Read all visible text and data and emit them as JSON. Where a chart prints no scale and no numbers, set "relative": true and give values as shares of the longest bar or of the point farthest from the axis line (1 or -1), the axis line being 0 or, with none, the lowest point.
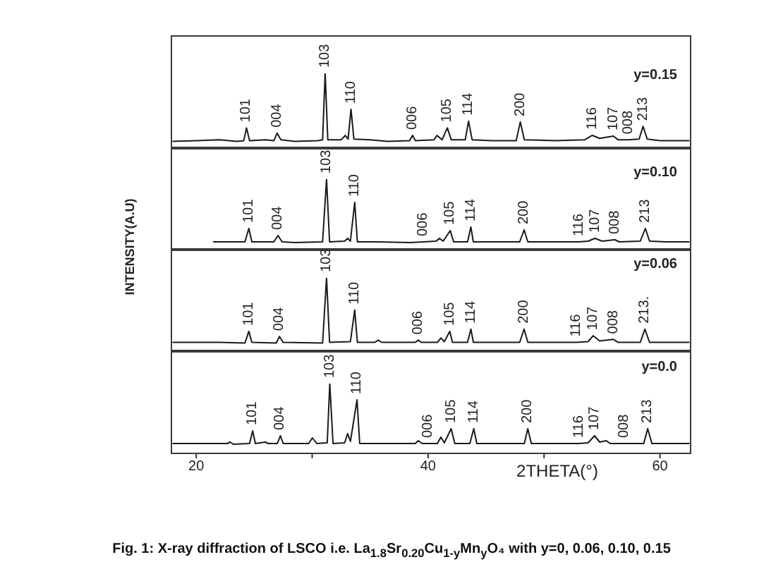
{
  "chart_data": [
    {
      "type": "line",
      "relative": true,
      "xlim": [
        17.8,
        62.7
      ],
      "tick_labels": false,
      "x": [
        18,
        20,
        22,
        23.5,
        24.1,
        24.34,
        24.6,
        26,
        26.7,
        26.98,
        27.3,
        28.5,
        30.5,
        30.9,
        31.12,
        31.35,
        32.5,
        32.86,
        33.1,
        33.35,
        33.6,
        35,
        36.5,
        38.4,
        38.66,
        38.9,
        40.5,
        40.77,
        41.2,
        41.66,
        42,
        43.2,
        43.49,
        43.8,
        45.5,
        47.6,
        47.95,
        48.3,
        51,
        53.5,
        54.16,
        54.8,
        55.98,
        56.4,
        57.3,
        58.2,
        58.54,
        58.9,
        60,
        62.5
      ],
      "series": [
        {
          "name": "y=0.15",
          "color": "#1a1a1a",
          "values": [
            0.09,
            0.1,
            0.11,
            0.09,
            0.1,
            0.27,
            0.1,
            0.11,
            0.1,
            0.2,
            0.11,
            0.09,
            0.1,
            0.11,
            1,
            0.11,
            0.11,
            0.17,
            0.12,
            0.52,
            0.12,
            0.11,
            0.09,
            0.1,
            0.17,
            0.1,
            0.11,
            0.17,
            0.11,
            0.27,
            0.11,
            0.11,
            0.36,
            0.11,
            0.1,
            0.1,
            0.35,
            0.11,
            0.1,
            0.11,
            0.17,
            0.13,
            0.16,
            0.11,
            0.11,
            0.12,
            0.29,
            0.12,
            0.1,
            0.1
          ]
        }
      ],
      "annotations": [
        {
          "text": "101",
          "x": 24.34,
          "y": 0.27
        },
        {
          "text": "004",
          "x": 26.98,
          "y": 0.2
        },
        {
          "text": "103",
          "x": 31.12,
          "y": 1
        },
        {
          "text": "110",
          "x": 33.35,
          "y": 0.52
        },
        {
          "text": "006",
          "x": 38.66,
          "y": 0.17
        },
        {
          "text": "105",
          "x": 41.66,
          "y": 0.27
        },
        {
          "text": "114",
          "x": 43.49,
          "y": 0.36
        },
        {
          "text": "200",
          "x": 47.95,
          "y": 0.35
        },
        {
          "text": "116",
          "x": 54.16,
          "y": 0.17
        },
        {
          "text": "107",
          "x": 55.98,
          "y": 0.16
        },
        {
          "text": "008",
          "x": 57.3,
          "y": 0.11
        },
        {
          "text": "213",
          "x": 58.54,
          "y": 0.29
        }
      ]
    },
    {
      "type": "line",
      "relative": true,
      "xlim": [
        17.8,
        62.7
      ],
      "tick_labels": false,
      "ylabel": "INTENSITY(A.U)",
      "x": [
        21.5,
        24.2,
        24.54,
        24.8,
        26.7,
        27.06,
        27.4,
        28.5,
        30.9,
        31.24,
        31.5,
        32.8,
        33.06,
        33.3,
        33.67,
        33.9,
        35.5,
        38.5,
        39.6,
        40.7,
        40.97,
        41.3,
        41.91,
        42.2,
        43.4,
        43.69,
        43.9,
        46,
        47.9,
        48.28,
        48.6,
        51,
        53,
        53.8,
        54.4,
        55,
        56.1,
        56.5,
        58.3,
        58.74,
        59.1,
        60.5,
        62.5
      ],
      "series": [
        {
          "name": "y=0.10",
          "color": "#1a1a1a",
          "values": [
            0.11,
            0.11,
            0.3,
            0.11,
            0.11,
            0.2,
            0.11,
            0.1,
            0.11,
            1,
            0.11,
            0.12,
            0.16,
            0.12,
            0.67,
            0.11,
            0.11,
            0.1,
            0.11,
            0.12,
            0.16,
            0.12,
            0.27,
            0.11,
            0.11,
            0.32,
            0.11,
            0.11,
            0.11,
            0.28,
            0.11,
            0.11,
            0.11,
            0.12,
            0.16,
            0.12,
            0.14,
            0.11,
            0.12,
            0.3,
            0.12,
            0.11,
            0.11
          ]
        }
      ],
      "annotations": [
        {
          "text": "101",
          "x": 24.54,
          "y": 0.3
        },
        {
          "text": "004",
          "x": 27.06,
          "y": 0.2
        },
        {
          "text": "103",
          "x": 31.24,
          "y": 1
        },
        {
          "text": "110",
          "x": 33.67,
          "y": 0.67
        },
        {
          "text": "006",
          "x": 39.6,
          "y": 0.11
        },
        {
          "text": "105",
          "x": 41.91,
          "y": 0.27
        },
        {
          "text": "114",
          "x": 43.69,
          "y": 0.32
        },
        {
          "text": "200",
          "x": 48.28,
          "y": 0.28
        },
        {
          "text": "116",
          "x": 53,
          "y": 0.11
        },
        {
          "text": "107",
          "x": 54.4,
          "y": 0.16
        },
        {
          "text": "008",
          "x": 56.1,
          "y": 0.14
        },
        {
          "text": "213",
          "x": 58.74,
          "y": 0.3
        }
      ]
    },
    {
      "type": "line",
      "relative": true,
      "xlim": [
        17.8,
        62.7
      ],
      "tick_labels": false,
      "x": [
        18,
        22,
        24.2,
        24.54,
        24.8,
        26.9,
        27.18,
        27.5,
        30.9,
        31.24,
        31.5,
        33.3,
        33.67,
        33.9,
        35.4,
        35.7,
        36,
        38.9,
        39.15,
        39.4,
        40.8,
        41.1,
        41.4,
        41.87,
        42.1,
        43.4,
        43.69,
        43.9,
        47.9,
        48.28,
        48.6,
        52.8,
        53.8,
        54.24,
        54.8,
        55.98,
        56.4,
        58.3,
        58.7,
        59.1,
        62.5
      ],
      "series": [
        {
          "name": "y=0.06",
          "color": "#1a1a1a",
          "values": [
            0.12,
            0.12,
            0.11,
            0.27,
            0.12,
            0.11,
            0.2,
            0.12,
            0.11,
            1,
            0.12,
            0.13,
            0.56,
            0.12,
            0.12,
            0.15,
            0.12,
            0.12,
            0.15,
            0.12,
            0.12,
            0.18,
            0.13,
            0.27,
            0.12,
            0.12,
            0.3,
            0.12,
            0.12,
            0.3,
            0.12,
            0.12,
            0.13,
            0.21,
            0.14,
            0.16,
            0.12,
            0.12,
            0.3,
            0.12,
            0.12
          ]
        }
      ],
      "annotations": [
        {
          "text": "101",
          "x": 24.54,
          "y": 0.27
        },
        {
          "text": "004",
          "x": 27.18,
          "y": 0.2
        },
        {
          "text": "103",
          "x": 31.24,
          "y": 1
        },
        {
          "text": "110",
          "x": 33.67,
          "y": 0.56
        },
        {
          "text": "006",
          "x": 39.15,
          "y": 0.15
        },
        {
          "text": "105",
          "x": 41.87,
          "y": 0.27
        },
        {
          "text": "114",
          "x": 43.69,
          "y": 0.3
        },
        {
          "text": "200",
          "x": 48.28,
          "y": 0.3
        },
        {
          "text": "116",
          "x": 52.8,
          "y": 0.12
        },
        {
          "text": "107",
          "x": 54.24,
          "y": 0.21
        },
        {
          "text": "008",
          "x": 55.98,
          "y": 0.16
        },
        {
          "text": "213.",
          "x": 58.7,
          "y": 0.3
        }
      ]
    },
    {
      "type": "line",
      "relative": true,
      "xlim": [
        17.8,
        62.7
      ],
      "xticks": [
        20,
        {
          "value": 30,
          "label": null
        },
        40,
        {
          "value": 50,
          "label": null
        },
        60
      ],
      "xlabel": "2THETA(°)",
      "x": [
        18,
        22.7,
        22.92,
        23.2,
        24.6,
        24.87,
        25.1,
        25.96,
        26.2,
        27,
        27.26,
        27.5,
        29.7,
        30.02,
        30.4,
        31.3,
        31.52,
        31.8,
        32.8,
        33.06,
        33.3,
        33.87,
        34.1,
        36,
        38.9,
        39.15,
        39.5,
        40,
        40.8,
        41.1,
        41.4,
        41.99,
        42.3,
        43.6,
        43.94,
        44.2,
        48.3,
        48.6,
        48.9,
        53,
        53.8,
        54.36,
        54.8,
        55.37,
        55.7,
        56.9,
        58.6,
        58.94,
        59.3,
        62.5
      ],
      "series": [
        {
          "name": "y=0.0",
          "color": "#1a1a1a",
          "values": [
            0.15,
            0.15,
            0.17,
            0.14,
            0.15,
            0.33,
            0.15,
            0.17,
            0.15,
            0.15,
            0.26,
            0.15,
            0.15,
            0.23,
            0.15,
            0.16,
            1,
            0.15,
            0.16,
            0.29,
            0.18,
            0.77,
            0.15,
            0.15,
            0.15,
            0.19,
            0.15,
            0.15,
            0.15,
            0.24,
            0.16,
            0.36,
            0.15,
            0.15,
            0.36,
            0.15,
            0.15,
            0.36,
            0.15,
            0.15,
            0.16,
            0.26,
            0.17,
            0.19,
            0.15,
            0.15,
            0.15,
            0.36,
            0.15,
            0.15
          ]
        }
      ],
      "annotations": [
        {
          "text": "101",
          "x": 24.87,
          "y": 0.33
        },
        {
          "text": "004",
          "x": 27.26,
          "y": 0.26
        },
        {
          "text": "103",
          "x": 31.52,
          "y": 1
        },
        {
          "text": "110",
          "x": 33.87,
          "y": 0.77
        },
        {
          "text": "006",
          "x": 40,
          "y": 0.15
        },
        {
          "text": "105",
          "x": 41.99,
          "y": 0.36
        },
        {
          "text": "114",
          "x": 43.94,
          "y": 0.36
        },
        {
          "text": "200",
          "x": 48.6,
          "y": 0.36
        },
        {
          "text": "116",
          "x": 53,
          "y": 0.15
        },
        {
          "text": "107",
          "x": 54.36,
          "y": 0.26
        },
        {
          "text": "008",
          "x": 56.9,
          "y": 0.15
        },
        {
          "text": "213",
          "x": 58.94,
          "y": 0.36
        },
        "Fig. 1: X-ray diffraction of LSCO i.e. La$_{1.8}$Sr$_{0.20}$Cu$_{1-y}$Mn$_{y}$O₄ with y=0, 0.06, 0.10, 0.15"
      ]
    }
  ]
}
